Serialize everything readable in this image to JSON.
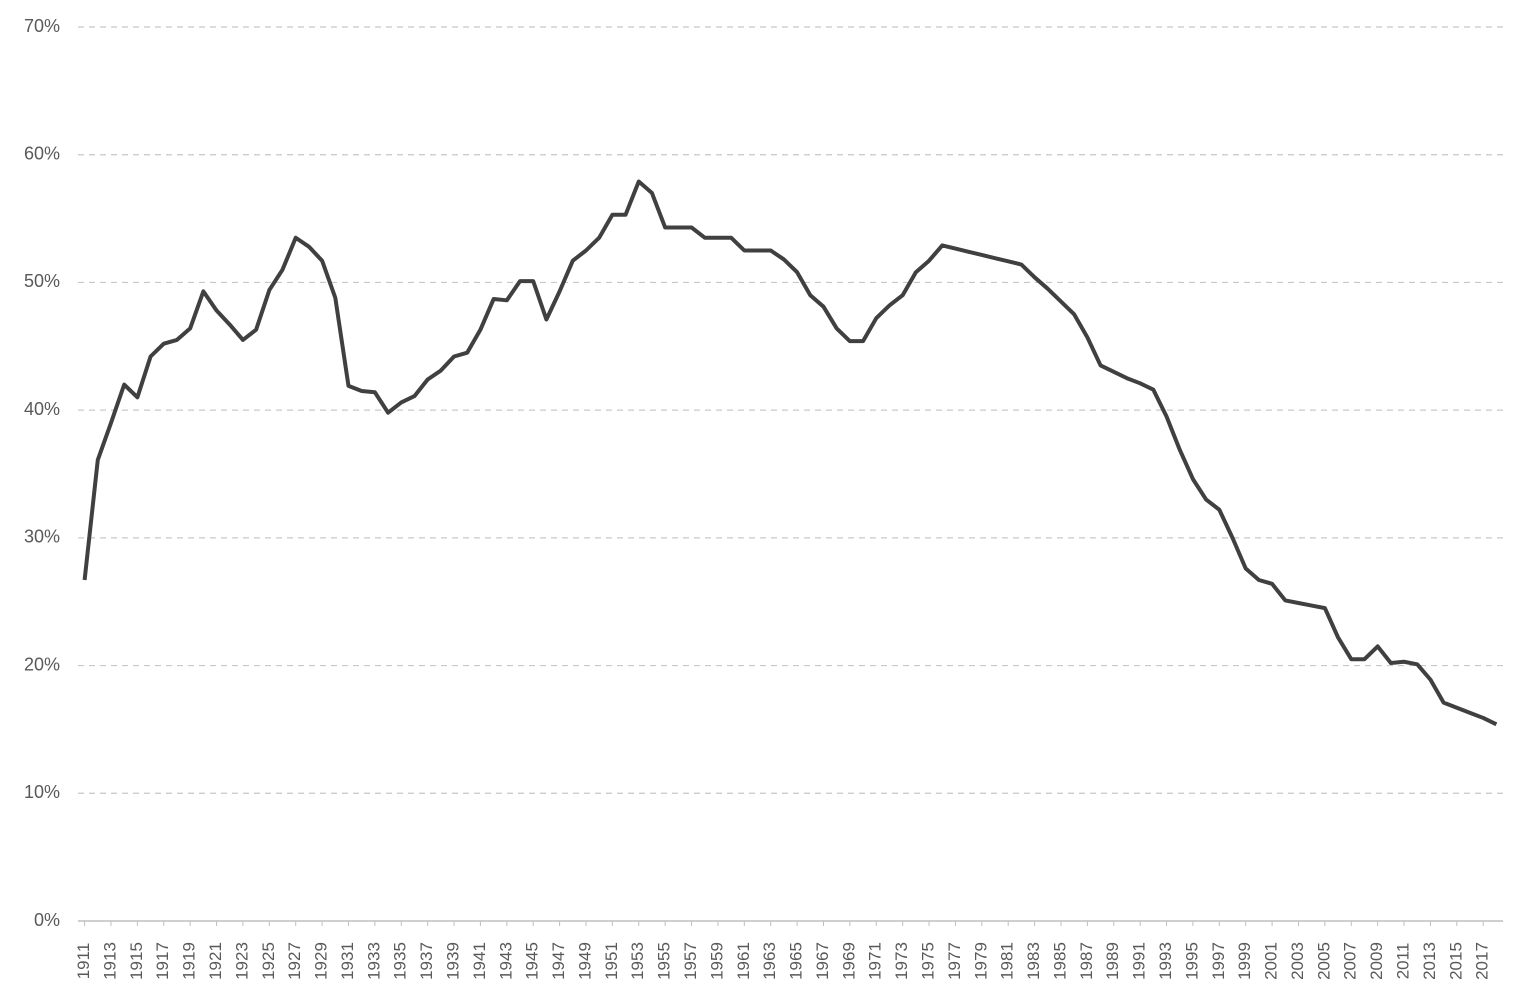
{
  "chart_data": {
    "type": "line",
    "x": [
      1911,
      1912,
      1913,
      1914,
      1915,
      1916,
      1917,
      1918,
      1919,
      1920,
      1921,
      1922,
      1923,
      1924,
      1925,
      1926,
      1927,
      1928,
      1929,
      1930,
      1931,
      1932,
      1933,
      1934,
      1935,
      1936,
      1937,
      1938,
      1939,
      1940,
      1941,
      1942,
      1943,
      1944,
      1945,
      1946,
      1947,
      1948,
      1949,
      1950,
      1951,
      1952,
      1953,
      1954,
      1955,
      1956,
      1957,
      1958,
      1959,
      1960,
      1961,
      1962,
      1963,
      1964,
      1965,
      1966,
      1967,
      1968,
      1969,
      1970,
      1971,
      1972,
      1973,
      1974,
      1975,
      1976,
      1977,
      1978,
      1979,
      1980,
      1981,
      1982,
      1983,
      1984,
      1985,
      1986,
      1987,
      1988,
      1989,
      1990,
      1991,
      1992,
      1993,
      1994,
      1995,
      1996,
      1997,
      1998,
      1999,
      2000,
      2001,
      2002,
      2003,
      2004,
      2005,
      2006,
      2007,
      2008,
      2009,
      2010,
      2011,
      2012,
      2013,
      2014,
      2015,
      2016,
      2017,
      2018
    ],
    "values": [
      26.7,
      36.1,
      39.0,
      42.0,
      41.0,
      44.2,
      45.2,
      45.5,
      46.4,
      49.3,
      47.8,
      46.7,
      45.5,
      46.3,
      49.4,
      51.0,
      53.5,
      52.8,
      51.7,
      48.8,
      41.9,
      41.5,
      41.4,
      39.8,
      40.6,
      41.1,
      42.4,
      43.1,
      44.2,
      44.5,
      46.3,
      48.7,
      48.6,
      50.1,
      50.1,
      47.1,
      49.3,
      51.7,
      52.5,
      53.5,
      55.3,
      55.3,
      57.9,
      57.0,
      54.3,
      54.3,
      54.3,
      53.5,
      53.5,
      53.5,
      52.5,
      52.5,
      52.5,
      51.8,
      50.8,
      49.0,
      48.1,
      46.4,
      45.4,
      45.4,
      47.2,
      48.2,
      49.0,
      50.8,
      51.7,
      52.9,
      52.65,
      52.4,
      52.15,
      51.9,
      51.65,
      51.4,
      50.4,
      49.5,
      48.5,
      47.5,
      45.7,
      43.5,
      43.0,
      42.5,
      42.1,
      41.6,
      39.5,
      36.9,
      34.6,
      33.0,
      32.2,
      30.0,
      27.6,
      26.7,
      26.4,
      25.1,
      24.9,
      24.7,
      24.5,
      22.2,
      20.5,
      20.5,
      21.5,
      20.2,
      20.3,
      20.1,
      18.9,
      17.1,
      16.7,
      16.3,
      15.9,
      15.4
    ],
    "color": "#404040",
    "xlim": [
      1910.5,
      2018.5
    ],
    "xticks": [
      1911,
      1913,
      1915,
      1917,
      1919,
      1921,
      1923,
      1925,
      1927,
      1929,
      1931,
      1933,
      1935,
      1937,
      1939,
      1941,
      1943,
      1945,
      1947,
      1949,
      1951,
      1953,
      1955,
      1957,
      1959,
      1961,
      1963,
      1965,
      1967,
      1969,
      1971,
      1973,
      1975,
      1977,
      1979,
      1981,
      1983,
      1985,
      1987,
      1989,
      1991,
      1993,
      1995,
      1997,
      1999,
      2001,
      2003,
      2005,
      2007,
      2009,
      2011,
      2013,
      2015,
      2017
    ],
    "ylim": [
      0,
      70
    ],
    "yticks": [
      {
        "value": 0,
        "label": "0%"
      },
      {
        "value": 10,
        "label": "10%"
      },
      {
        "value": 20,
        "label": "20%"
      },
      {
        "value": 30,
        "label": "30%"
      },
      {
        "value": 40,
        "label": "40%"
      },
      {
        "value": 50,
        "label": "50%"
      },
      {
        "value": 60,
        "label": "60%"
      },
      {
        "value": 70,
        "label": "70%"
      }
    ],
    "grid": true
  }
}
